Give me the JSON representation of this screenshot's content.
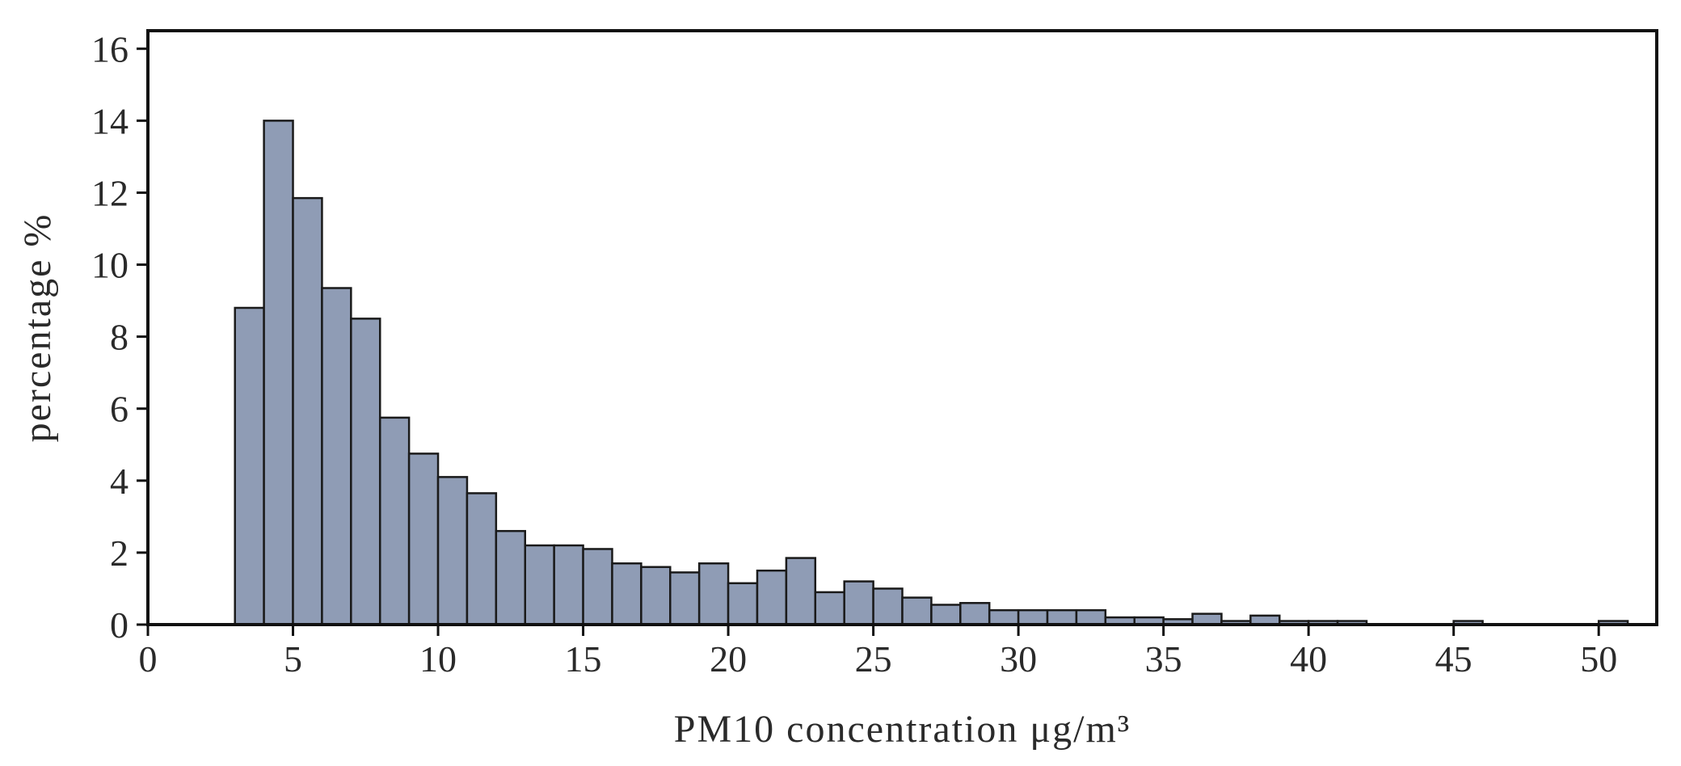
{
  "chart_data": {
    "type": "bar",
    "bin_width": 1,
    "bins_start": [
      3,
      4,
      5,
      6,
      7,
      8,
      9,
      10,
      11,
      12,
      13,
      14,
      15,
      16,
      17,
      18,
      19,
      20,
      21,
      22,
      23,
      24,
      25,
      26,
      27,
      28,
      29,
      30,
      31,
      32,
      33,
      34,
      35,
      36,
      37,
      38,
      39,
      40,
      41,
      42,
      43,
      44,
      45,
      46,
      47,
      48,
      49,
      50
    ],
    "values": [
      8.8,
      14.0,
      11.85,
      9.35,
      8.5,
      5.75,
      4.75,
      4.1,
      3.65,
      2.6,
      2.2,
      2.2,
      2.1,
      1.7,
      1.6,
      1.45,
      1.7,
      1.15,
      1.5,
      1.85,
      0.9,
      1.2,
      1.0,
      0.75,
      0.55,
      0.6,
      0.4,
      0.4,
      0.4,
      0.4,
      0.2,
      0.2,
      0.15,
      0.3,
      0.1,
      0.25,
      0.1,
      0.1,
      0.1,
      0.0,
      0.0,
      0.0,
      0.1,
      0.0,
      0.0,
      0.0,
      0.0,
      0.1
    ],
    "xlim": [
      0,
      52
    ],
    "ylim": [
      0,
      16.5
    ],
    "xticks": [
      "0",
      "5",
      "10",
      "15",
      "20",
      "25",
      "30",
      "35",
      "40",
      "45",
      "50"
    ],
    "yticks": [
      "0",
      "2",
      "4",
      "6",
      "8",
      "10",
      "12",
      "14",
      "16"
    ],
    "xlabel": "PM10  concentration   μg/m³",
    "ylabel": "percentage  %",
    "bar_color": "#8f9cb5",
    "grid": false
  }
}
